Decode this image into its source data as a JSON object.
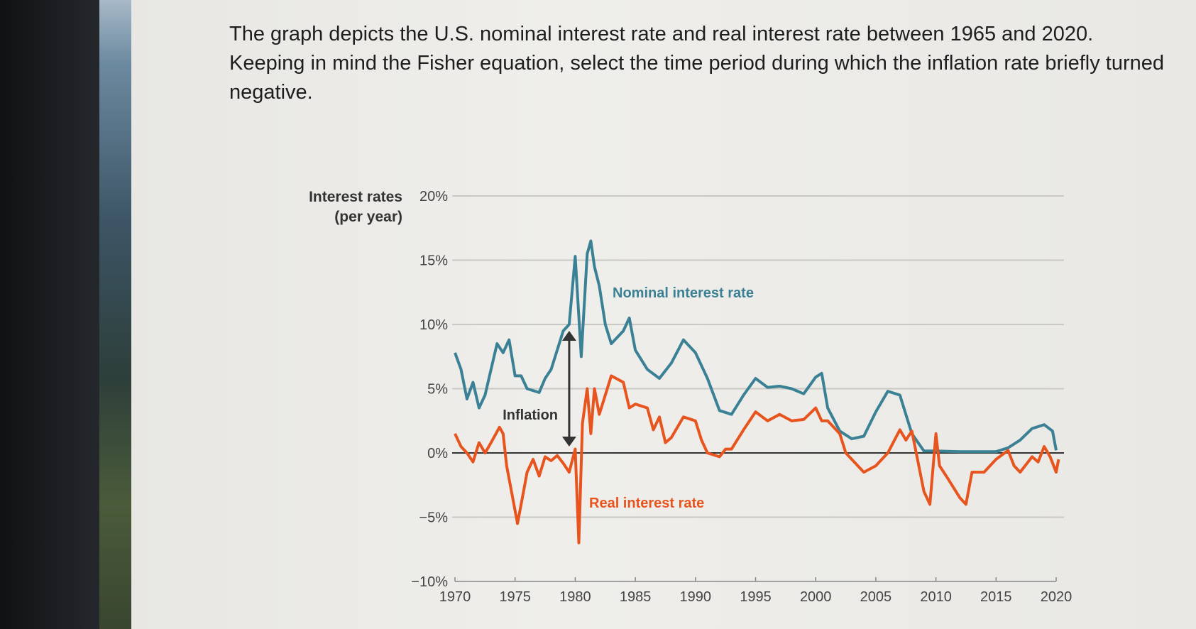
{
  "question": "The graph depicts the U.S. nominal interest rate and real interest rate between 1965 and 2020. Keeping in mind the Fisher equation, select the time period during which the inflation rate briefly turned negative.",
  "colors": {
    "nominal": "#3a8196",
    "real": "#e8541e",
    "grid": "#c9c8c4",
    "zero": "#333333"
  },
  "chart_data": {
    "type": "line",
    "ylabel_line1": "Interest rates",
    "ylabel_line2": "(per year)",
    "ylim": [
      -10,
      20
    ],
    "xlim": [
      1970,
      2020
    ],
    "y_ticks": [
      20,
      15,
      10,
      5,
      0,
      -5,
      -10
    ],
    "y_tick_labels": [
      "20%",
      "15%",
      "10%",
      "5%",
      "0%",
      "−5%",
      "−10%"
    ],
    "x_ticks": [
      1970,
      1975,
      1980,
      1985,
      1990,
      1995,
      2000,
      2005,
      2010,
      2015,
      2020
    ],
    "x_tick_labels": [
      "1970",
      "1975",
      "1980",
      "1985",
      "1990",
      "1995",
      "2000",
      "2005",
      "2010",
      "2015",
      "2020"
    ],
    "grid": true,
    "annotations": {
      "inflation": "Inflation",
      "inflation_arrow": {
        "x": 1979.5,
        "from": 9.5,
        "to": 0.5
      }
    },
    "series": [
      {
        "name": "Nominal interest rate",
        "color": "#3a8196",
        "x": [
          1970,
          1970.5,
          1971,
          1971.5,
          1972,
          1972.5,
          1973,
          1973.5,
          1974,
          1974.5,
          1975,
          1975.5,
          1976,
          1977,
          1977.5,
          1978,
          1978.5,
          1979,
          1979.5,
          1980,
          1980.5,
          1981,
          1981.3,
          1981.6,
          1982,
          1982.5,
          1983,
          1984,
          1984.5,
          1985,
          1986,
          1987,
          1988,
          1989,
          1990,
          1991,
          1992,
          1993,
          1994,
          1995,
          1996,
          1997,
          1998,
          1999,
          2000,
          2000.5,
          2001,
          2002,
          2003,
          2004,
          2005,
          2006,
          2007,
          2008,
          2009,
          2010,
          2012,
          2015,
          2016,
          2017,
          2018,
          2019,
          2019.7,
          2020
        ],
        "y": [
          7.8,
          6.5,
          4.2,
          5.5,
          3.5,
          4.5,
          6.5,
          8.5,
          7.8,
          8.8,
          6,
          6,
          5,
          4.7,
          5.8,
          6.5,
          8,
          9.5,
          10,
          15.3,
          7.5,
          15.5,
          16.5,
          14.5,
          13,
          10,
          8.5,
          9.5,
          10.5,
          8,
          6.5,
          5.8,
          7,
          8.8,
          7.8,
          5.8,
          3.3,
          3.0,
          4.5,
          5.8,
          5.1,
          5.2,
          5.0,
          4.6,
          5.9,
          6.2,
          3.5,
          1.7,
          1.1,
          1.3,
          3.2,
          4.8,
          4.5,
          1.5,
          0.15,
          0.15,
          0.1,
          0.1,
          0.4,
          1.0,
          1.9,
          2.2,
          1.7,
          0.2
        ]
      },
      {
        "name": "Real interest rate",
        "color": "#e8541e",
        "x": [
          1970,
          1970.5,
          1971,
          1971.5,
          1972,
          1972.5,
          1973,
          1973.7,
          1974,
          1974.3,
          1974.7,
          1975.2,
          1975.7,
          1976,
          1976.5,
          1977,
          1977.5,
          1978,
          1978.5,
          1979,
          1979.5,
          1980,
          1980.3,
          1980.6,
          1981,
          1981.3,
          1981.6,
          1982,
          1982.5,
          1983,
          1984,
          1984.5,
          1985,
          1986,
          1986.5,
          1987,
          1987.5,
          1988,
          1989,
          1990,
          1990.5,
          1991,
          1992,
          1992.5,
          1993,
          1994,
          1995,
          1996,
          1997,
          1998,
          1999,
          2000,
          2000.5,
          2001,
          2002,
          2002.5,
          2003,
          2004,
          2005,
          2006,
          2007,
          2007.5,
          2008,
          2009,
          2009.5,
          2010,
          2010.3,
          2011,
          2012,
          2012.5,
          2013,
          2014,
          2015,
          2016,
          2016.5,
          2017,
          2018,
          2018.5,
          2019,
          2019.5,
          2020,
          2020.2
        ],
        "y": [
          1.5,
          0.5,
          0,
          -0.7,
          0.8,
          0,
          0.8,
          2,
          1.5,
          -1,
          -3,
          -5.5,
          -3,
          -1.5,
          -0.5,
          -1.8,
          -0.3,
          -0.6,
          -0.2,
          -0.8,
          -1.5,
          0.3,
          -7,
          2.3,
          5,
          1.5,
          5,
          3,
          4.5,
          6,
          5.5,
          3.5,
          3.8,
          3.5,
          1.8,
          2.8,
          0.8,
          1.2,
          2.8,
          2.5,
          1,
          0,
          -0.3,
          0.3,
          0.3,
          1.8,
          3.2,
          2.5,
          3,
          2.5,
          2.6,
          3.5,
          2.5,
          2.5,
          1.5,
          0,
          -0.5,
          -1.5,
          -1,
          0,
          1.8,
          1,
          1.7,
          -3,
          -4,
          1.5,
          -1,
          -2,
          -3.5,
          -4,
          -1.5,
          -1.5,
          -0.5,
          0.2,
          -1,
          -1.5,
          -0.3,
          -0.7,
          0.5,
          -0.3,
          -1.5,
          -0.5
        ]
      }
    ]
  }
}
